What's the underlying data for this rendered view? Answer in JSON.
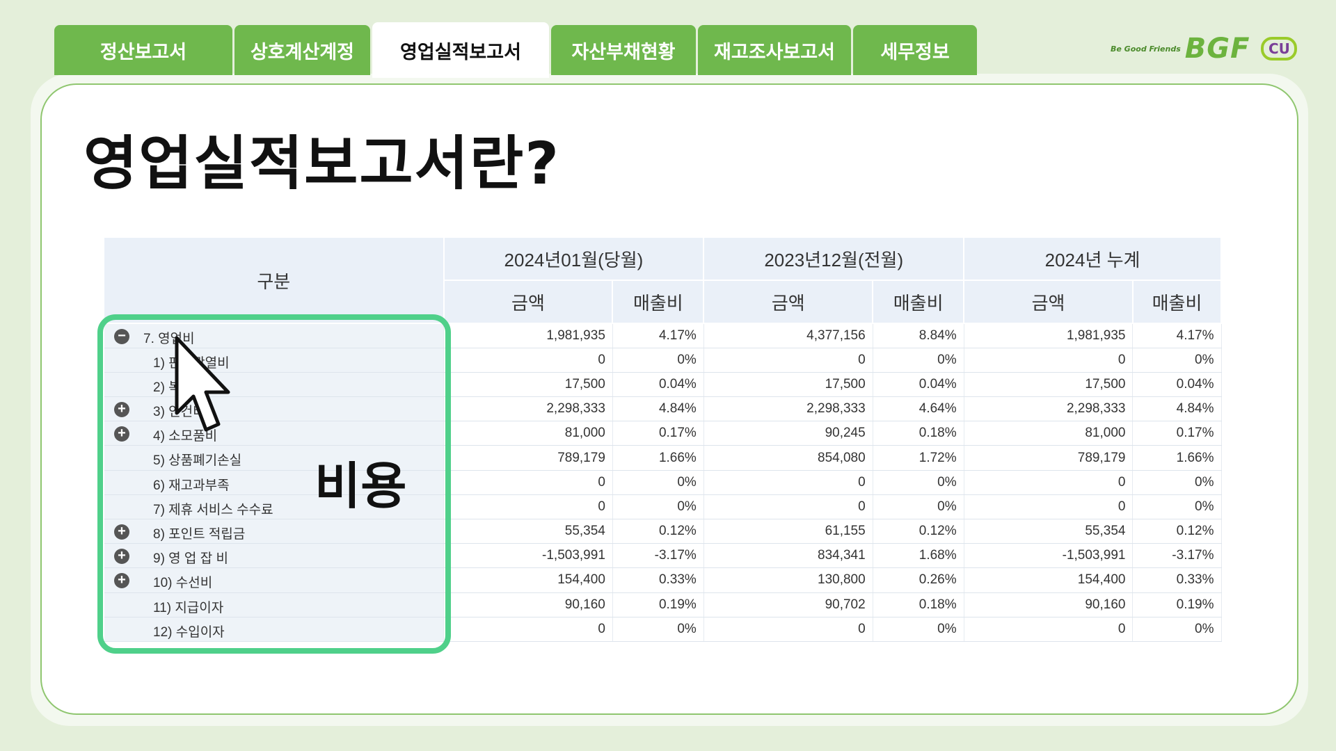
{
  "tabs": [
    {
      "label": "정산보고서",
      "width": 256,
      "active": false
    },
    {
      "label": "상호계산계정",
      "width": 195,
      "active": false
    },
    {
      "label": "영업실적보고서",
      "width": 254,
      "active": true
    },
    {
      "label": "자산부채현황",
      "width": 208,
      "active": false
    },
    {
      "label": "재고조사보고서",
      "width": 220,
      "active": false
    },
    {
      "label": "세무정보",
      "width": 178,
      "active": false
    }
  ],
  "logo": {
    "tagline": "Be Good Friends",
    "brand": "BGF",
    "sub_brand": "CU"
  },
  "title": "영업실적보고서란?",
  "callout": "비용",
  "table": {
    "category_header": "구분",
    "period_headers": [
      "2024년01월(당월)",
      "2023년12월(전월)",
      "2024년 누계"
    ],
    "sub_headers": [
      "금액",
      "매출비",
      "금액",
      "매출비",
      "금액",
      "매출비"
    ],
    "rows": [
      {
        "label": "7. 영업비",
        "toggle": "−",
        "cells": [
          "1,981,935",
          "4.17%",
          "4,377,156",
          "8.84%",
          "1,981,935",
          "4.17%"
        ]
      },
      {
        "label": "1) 판촉광열비",
        "toggle": "",
        "cells": [
          "0",
          "0%",
          "0",
          "0%",
          "0",
          "0%"
        ]
      },
      {
        "label": "2) 복리비",
        "toggle": "",
        "cells": [
          "17,500",
          "0.04%",
          "17,500",
          "0.04%",
          "17,500",
          "0.04%"
        ]
      },
      {
        "label": "3) 인건비",
        "toggle": "+",
        "cells": [
          "2,298,333",
          "4.84%",
          "2,298,333",
          "4.64%",
          "2,298,333",
          "4.84%"
        ]
      },
      {
        "label": "4) 소모품비",
        "toggle": "+",
        "cells": [
          "81,000",
          "0.17%",
          "90,245",
          "0.18%",
          "81,000",
          "0.17%"
        ]
      },
      {
        "label": "5) 상품폐기손실",
        "toggle": "",
        "cells": [
          "789,179",
          "1.66%",
          "854,080",
          "1.72%",
          "789,179",
          "1.66%"
        ]
      },
      {
        "label": "6) 재고과부족",
        "toggle": "",
        "cells": [
          "0",
          "0%",
          "0",
          "0%",
          "0",
          "0%"
        ]
      },
      {
        "label": "7) 제휴 서비스 수수료",
        "toggle": "",
        "cells": [
          "0",
          "0%",
          "0",
          "0%",
          "0",
          "0%"
        ]
      },
      {
        "label": "8) 포인트 적립금",
        "toggle": "+",
        "cells": [
          "55,354",
          "0.12%",
          "61,155",
          "0.12%",
          "55,354",
          "0.12%"
        ]
      },
      {
        "label": "9) 영 업 잡 비",
        "toggle": "+",
        "cells": [
          "-1,503,991",
          "-3.17%",
          "834,341",
          "1.68%",
          "-1,503,991",
          "-3.17%"
        ]
      },
      {
        "label": "10)  수선비",
        "toggle": "+",
        "cells": [
          "154,400",
          "0.33%",
          "130,800",
          "0.26%",
          "154,400",
          "0.33%"
        ]
      },
      {
        "label": "11) 지급이자",
        "toggle": "",
        "cells": [
          "90,160",
          "0.19%",
          "90,702",
          "0.18%",
          "90,160",
          "0.19%"
        ]
      },
      {
        "label": "12) 수입이자",
        "toggle": "",
        "cells": [
          "0",
          "0%",
          "0",
          "0%",
          "0",
          "0%"
        ]
      }
    ]
  },
  "colors": {
    "tab_green": "#6fb84d",
    "highlight": "#4fd08a",
    "page_bg": "#e4efda"
  }
}
